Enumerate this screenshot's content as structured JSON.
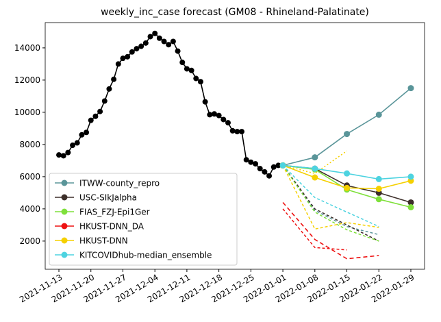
{
  "chart_data": {
    "type": "line",
    "title": "weekly_inc_case forecast (GM08 - Rhineland-Palatinate)",
    "xlim": [
      "2021-11-10",
      "2022-02-01"
    ],
    "xticks": [
      "2021-11-13",
      "2021-11-20",
      "2021-11-27",
      "2021-12-04",
      "2021-12-11",
      "2021-12-18",
      "2021-12-25",
      "2022-01-01",
      "2022-01-08",
      "2022-01-15",
      "2022-01-22",
      "2022-01-29"
    ],
    "ylim": [
      250,
      15570
    ],
    "yticks": [
      2000,
      4000,
      6000,
      8000,
      10000,
      12000,
      14000
    ],
    "legend": "lower left",
    "observed": {
      "color": "#000000",
      "x": [
        "2021-11-13",
        "2021-11-14",
        "2021-11-15",
        "2021-11-16",
        "2021-11-17",
        "2021-11-18",
        "2021-11-19",
        "2021-11-20",
        "2021-11-21",
        "2021-11-22",
        "2021-11-23",
        "2021-11-24",
        "2021-11-25",
        "2021-11-26",
        "2021-11-27",
        "2021-11-28",
        "2021-11-29",
        "2021-11-30",
        "2021-12-01",
        "2021-12-02",
        "2021-12-03",
        "2021-12-04",
        "2021-12-05",
        "2021-12-06",
        "2021-12-07",
        "2021-12-08",
        "2021-12-09",
        "2021-12-10",
        "2021-12-11",
        "2021-12-12",
        "2021-12-13",
        "2021-12-14",
        "2021-12-15",
        "2021-12-16",
        "2021-12-17",
        "2021-12-18",
        "2021-12-19",
        "2021-12-20",
        "2021-12-21",
        "2021-12-22",
        "2021-12-23",
        "2021-12-24",
        "2021-12-25",
        "2021-12-26",
        "2021-12-27",
        "2021-12-28",
        "2021-12-29",
        "2021-12-30",
        "2021-12-31"
      ],
      "values": [
        7350,
        7300,
        7500,
        7950,
        8100,
        8600,
        8750,
        9500,
        9750,
        10050,
        10700,
        11450,
        12050,
        13000,
        13350,
        13450,
        13750,
        13950,
        14100,
        14300,
        14700,
        14900,
        14600,
        14400,
        14200,
        14400,
        13800,
        13100,
        12700,
        12600,
        12100,
        11900,
        10650,
        9850,
        9900,
        9800,
        9550,
        9350,
        8850,
        8800,
        8800,
        7050,
        6900,
        6800,
        6500,
        6300,
        6050,
        6600,
        6700
      ]
    },
    "forecast_x": [
      "2022-01-01",
      "2022-01-08",
      "2022-01-15",
      "2022-01-22",
      "2022-01-29"
    ],
    "series": [
      {
        "name": "ITWW-county_repro",
        "color": "#5a9599",
        "values": [
          6700,
          7200,
          8650,
          9850,
          11500
        ],
        "lower": [
          6700,
          3900,
          2900,
          2400,
          null
        ]
      },
      {
        "name": "USC-SIkJalpha",
        "color": "#3d2f2a",
        "values": [
          6700,
          6500,
          5450,
          5000,
          4400
        ],
        "lower": [
          6700,
          4000,
          3000,
          2000,
          null
        ]
      },
      {
        "name": "FIAS_FZJ-Epi1Ger",
        "color": "#7fe03b",
        "values": [
          6700,
          6450,
          5200,
          4600,
          4100
        ],
        "lower": [
          6700,
          3800,
          2700,
          2000,
          null
        ]
      },
      {
        "name": "HKUST-DNN_DA",
        "color": "#ee1111",
        "line_style": "dashed",
        "values": [
          4400,
          2100,
          900,
          1100,
          null
        ],
        "lower": [
          4000,
          1600,
          1450,
          null,
          null
        ]
      },
      {
        "name": "HKUST-DNN",
        "color": "#f5d000",
        "values": [
          6700,
          5950,
          5300,
          5250,
          5750
        ],
        "lower": [
          6700,
          2750,
          3150,
          2850,
          null
        ],
        "upper": [
          6700,
          6200,
          7600,
          null,
          null
        ]
      },
      {
        "name": "KITCOVIDhub-median_ensemble",
        "color": "#4dd3e0",
        "values": [
          6700,
          6500,
          6200,
          5850,
          6000
        ],
        "lower": [
          6700,
          4700,
          3800,
          2900,
          null
        ]
      }
    ]
  }
}
